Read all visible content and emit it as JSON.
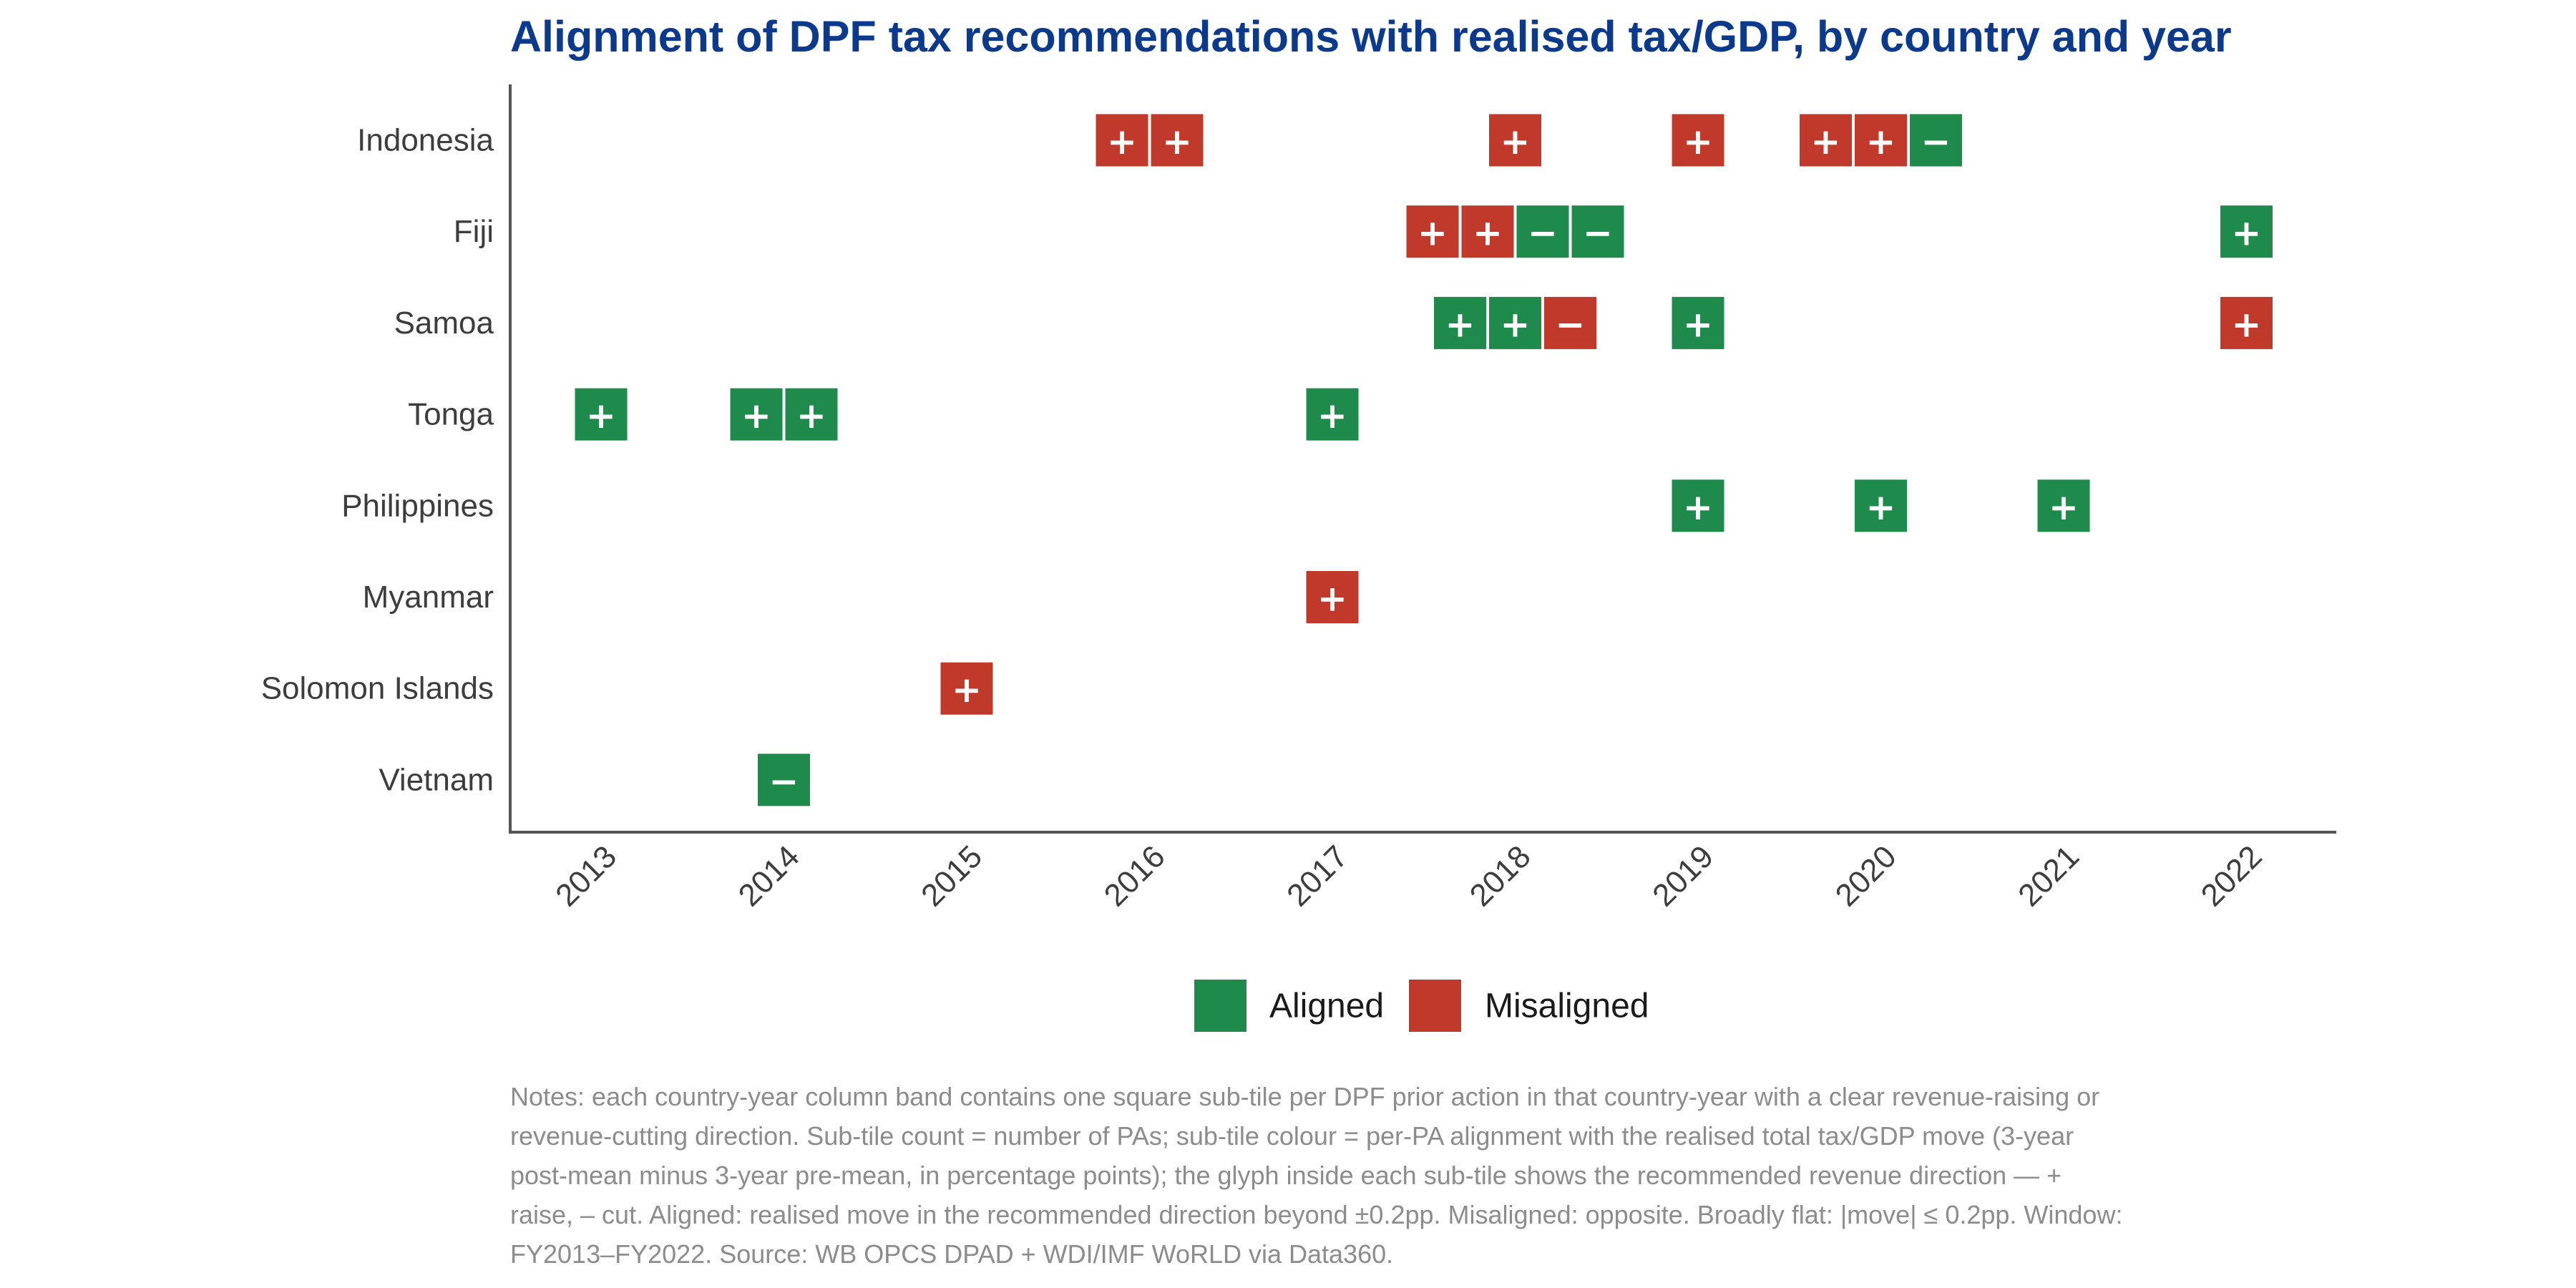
{
  "chart_data": {
    "type": "heatmap",
    "title": "Alignment of DPF tax recommendations with realised tax/GDP, by country and year",
    "xlabel": "",
    "ylabel": "",
    "x_categories": [
      "2013",
      "2014",
      "2015",
      "2016",
      "2017",
      "2018",
      "2019",
      "2020",
      "2021",
      "2022"
    ],
    "y_categories": [
      "Indonesia",
      "Fiji",
      "Samoa",
      "Tonga",
      "Philippines",
      "Myanmar",
      "Solomon Islands",
      "Vietnam"
    ],
    "cells": [
      {
        "country": "Indonesia",
        "year": "2016",
        "tiles": [
          {
            "direction": "+",
            "status": "Misaligned"
          },
          {
            "direction": "+",
            "status": "Misaligned"
          }
        ]
      },
      {
        "country": "Indonesia",
        "year": "2018",
        "tiles": [
          {
            "direction": "+",
            "status": "Misaligned"
          }
        ]
      },
      {
        "country": "Indonesia",
        "year": "2019",
        "tiles": [
          {
            "direction": "+",
            "status": "Misaligned"
          }
        ]
      },
      {
        "country": "Indonesia",
        "year": "2020",
        "tiles": [
          {
            "direction": "+",
            "status": "Misaligned"
          },
          {
            "direction": "+",
            "status": "Misaligned"
          },
          {
            "direction": "−",
            "status": "Aligned"
          }
        ]
      },
      {
        "country": "Fiji",
        "year": "2018",
        "tiles": [
          {
            "direction": "+",
            "status": "Misaligned"
          },
          {
            "direction": "+",
            "status": "Misaligned"
          },
          {
            "direction": "−",
            "status": "Aligned"
          },
          {
            "direction": "−",
            "status": "Aligned"
          }
        ]
      },
      {
        "country": "Fiji",
        "year": "2022",
        "tiles": [
          {
            "direction": "+",
            "status": "Aligned"
          }
        ]
      },
      {
        "country": "Samoa",
        "year": "2018",
        "tiles": [
          {
            "direction": "+",
            "status": "Aligned"
          },
          {
            "direction": "+",
            "status": "Aligned"
          },
          {
            "direction": "−",
            "status": "Misaligned"
          }
        ]
      },
      {
        "country": "Samoa",
        "year": "2019",
        "tiles": [
          {
            "direction": "+",
            "status": "Aligned"
          }
        ]
      },
      {
        "country": "Samoa",
        "year": "2022",
        "tiles": [
          {
            "direction": "+",
            "status": "Misaligned"
          }
        ]
      },
      {
        "country": "Tonga",
        "year": "2013",
        "tiles": [
          {
            "direction": "+",
            "status": "Aligned"
          }
        ]
      },
      {
        "country": "Tonga",
        "year": "2014",
        "tiles": [
          {
            "direction": "+",
            "status": "Aligned"
          },
          {
            "direction": "+",
            "status": "Aligned"
          }
        ]
      },
      {
        "country": "Tonga",
        "year": "2017",
        "tiles": [
          {
            "direction": "+",
            "status": "Aligned"
          }
        ]
      },
      {
        "country": "Philippines",
        "year": "2019",
        "tiles": [
          {
            "direction": "+",
            "status": "Aligned"
          }
        ]
      },
      {
        "country": "Philippines",
        "year": "2020",
        "tiles": [
          {
            "direction": "+",
            "status": "Aligned"
          }
        ]
      },
      {
        "country": "Philippines",
        "year": "2021",
        "tiles": [
          {
            "direction": "+",
            "status": "Aligned"
          }
        ]
      },
      {
        "country": "Myanmar",
        "year": "2017",
        "tiles": [
          {
            "direction": "+",
            "status": "Misaligned"
          }
        ]
      },
      {
        "country": "Solomon Islands",
        "year": "2015",
        "tiles": [
          {
            "direction": "+",
            "status": "Misaligned"
          }
        ]
      },
      {
        "country": "Vietnam",
        "year": "2014",
        "tiles": [
          {
            "direction": "−",
            "status": "Aligned"
          }
        ]
      }
    ],
    "legend": {
      "position": "bottom",
      "items": [
        {
          "label": "Aligned",
          "color": "#1e8a4c"
        },
        {
          "label": "Misaligned",
          "color": "#c0392b"
        }
      ]
    },
    "grid": false
  },
  "colors": {
    "title": "#0b3a8c",
    "aligned": "#1e8a4c",
    "misaligned": "#c0392b",
    "axis": "#555555",
    "tick_label": "#3d3d3d",
    "notes": "#8c8c8c"
  },
  "notes": "Notes: each country-year column band contains one square sub-tile per DPF prior action in that country-year with a clear revenue-raising or revenue-cutting direction. Sub-tile count = number of PAs; sub-tile colour = per-PA alignment with the realised total tax/GDP move (3-year post-mean minus 3-year pre-mean, in percentage points); the glyph inside each sub-tile shows the recommended revenue direction — + raise, – cut. Aligned: realised move in the recommended direction beyond ±0.2pp. Misaligned: opposite. Broadly flat: |move| ≤ 0.2pp. Window: FY2013–FY2022. Source: WB OPCS DPAD + WDI/IMF WoRLD via Data360."
}
